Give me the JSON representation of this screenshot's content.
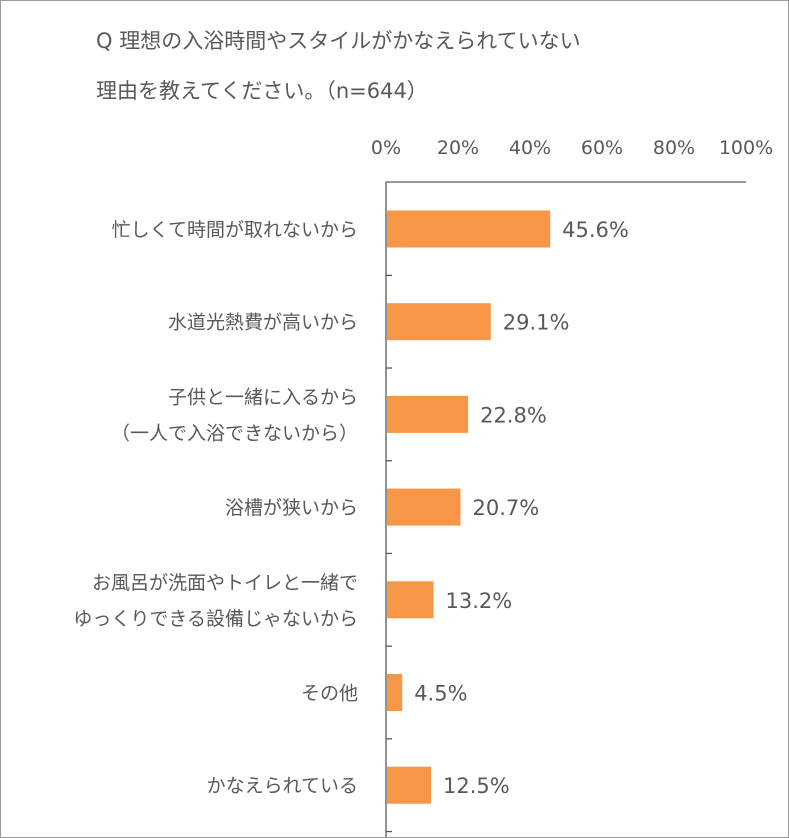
{
  "chart_data": {
    "type": "bar",
    "orientation": "horizontal",
    "title_lines": [
      "Q 理想の入浴時間やスタイルがかなえられていない",
      "理由を教えてください。（n=644）"
    ],
    "xlim": [
      0,
      100
    ],
    "x_ticks": [
      "0%",
      "20%",
      "40%",
      "60%",
      "80%",
      "100%"
    ],
    "categories": [
      [
        "忙しくて時間が取れないから"
      ],
      [
        "水道光熱費が高いから"
      ],
      [
        "子供と一緒に入るから",
        "（一人で入浴できないから）"
      ],
      [
        "浴槽が狭いから"
      ],
      [
        "お風呂が洗面やトイレと一緒で",
        "ゆっくりできる設備じゃないから"
      ],
      [
        "その他"
      ],
      [
        "かなえられている"
      ]
    ],
    "values": [
      45.6,
      29.1,
      22.8,
      20.7,
      13.2,
      4.5,
      12.5
    ],
    "value_labels": [
      "45.6%",
      "29.1%",
      "22.8%",
      "20.7%",
      "13.2%",
      "4.5%",
      "12.5%"
    ],
    "bar_color": "#F79646",
    "axis_color": "#595959",
    "text_color": "#595959",
    "grid": false,
    "legend": "none"
  }
}
